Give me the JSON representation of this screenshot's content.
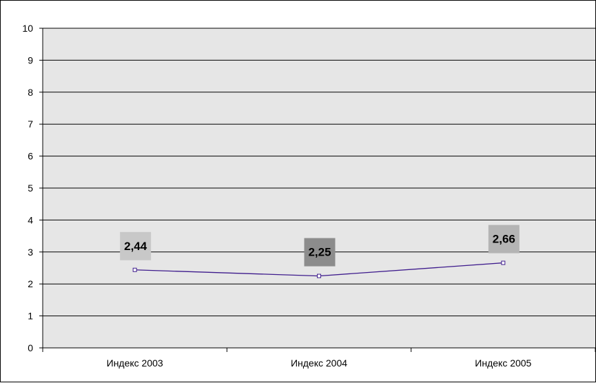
{
  "chart_data": {
    "type": "line",
    "categories": [
      "Индекс 2003",
      "Индекс 2004",
      "Индекс 2005"
    ],
    "series": [
      {
        "values": [
          2.44,
          2.25,
          2.66
        ],
        "data_labels": [
          "2,44",
          "2,25",
          "2,66"
        ],
        "label_bg_colors": [
          "#c8c8c8",
          "#8c8c8c",
          "#b4b4b4"
        ],
        "color": "#3d1a8c"
      }
    ],
    "ylim": [
      0,
      10
    ],
    "yticks": [
      0,
      1,
      2,
      3,
      4,
      5,
      6,
      7,
      8,
      9,
      10
    ],
    "grid": true,
    "plot_background": "#e6e6e6",
    "legend": "none"
  }
}
